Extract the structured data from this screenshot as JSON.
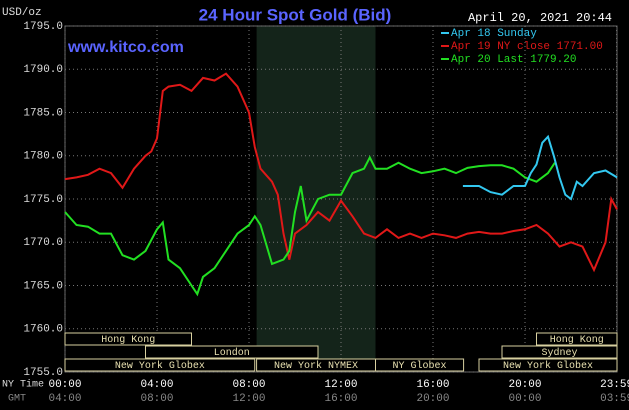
{
  "chart_data": {
    "type": "line",
    "title": "24 Hour Spot Gold (Bid)",
    "timestamp": "April 20, 2021 20:44",
    "website": "www.kitco.com",
    "y_unit": "USD/oz",
    "x_label": "NY Time",
    "x2_label": "GMT",
    "xlim": [
      0,
      24
    ],
    "ylim": [
      1755,
      1795
    ],
    "xticks": [
      {
        "value": 0,
        "label": "00:00"
      },
      {
        "value": 4,
        "label": "04:00"
      },
      {
        "value": 8,
        "label": "08:00"
      },
      {
        "value": 12,
        "label": "12:00"
      },
      {
        "value": 16,
        "label": "16:00"
      },
      {
        "value": 20,
        "label": "20:00"
      },
      {
        "value": 23.983,
        "label": "23:59"
      }
    ],
    "gmt_labels": [
      "04:00",
      "08:00",
      "12:00",
      "16:00",
      "20:00",
      "00:00",
      "03:59"
    ],
    "yticks": [
      {
        "value": 1755,
        "label": "1755.0"
      },
      {
        "value": 1760,
        "label": "1760.0"
      },
      {
        "value": 1765,
        "label": "1765.0"
      },
      {
        "value": 1770,
        "label": "1770.0"
      },
      {
        "value": 1775,
        "label": "1775.0"
      },
      {
        "value": 1780,
        "label": "1780.0"
      },
      {
        "value": 1785,
        "label": "1785.0"
      },
      {
        "value": 1790,
        "label": "1790.0"
      },
      {
        "value": 1795,
        "label": "1795.0"
      }
    ],
    "grid": true,
    "series": [
      {
        "name": "Apr 18 Sunday",
        "color": "#33c8f0",
        "x": [
          17.3,
          18,
          18.5,
          19,
          19.5,
          20,
          20.25,
          20.5,
          20.75,
          21,
          21.25,
          21.5,
          21.75,
          22,
          22.25,
          22.5,
          23,
          23.5,
          24
        ],
        "values": [
          1776.5,
          1776.5,
          1775.8,
          1775.5,
          1776.5,
          1776.5,
          1778,
          1779,
          1781.5,
          1782.2,
          1780,
          1777.5,
          1775.5,
          1775,
          1777,
          1776.5,
          1778,
          1778.3,
          1777.5
        ]
      },
      {
        "name": "Apr 19 NY close 1771.00",
        "color": "#e01818",
        "x": [
          0,
          0.5,
          1,
          1.5,
          2,
          2.5,
          3,
          3.5,
          3.75,
          4,
          4.25,
          4.5,
          5,
          5.5,
          6,
          6.5,
          7,
          7.5,
          8,
          8.25,
          8.5,
          9,
          9.25,
          9.5,
          9.75,
          10,
          10.5,
          11,
          11.5,
          12,
          12.5,
          13,
          13.5,
          14,
          14.5,
          15,
          15.5,
          16,
          16.5,
          17,
          17.5,
          18,
          18.5,
          19,
          19.5,
          20,
          20.5,
          21,
          21.5,
          22,
          22.5,
          23,
          23.5,
          23.75,
          24
        ],
        "values": [
          1777.3,
          1777.5,
          1777.8,
          1778.5,
          1778,
          1776.3,
          1778.5,
          1780,
          1780.5,
          1782,
          1787.5,
          1788,
          1788.2,
          1787.5,
          1789,
          1788.7,
          1789.5,
          1788,
          1785,
          1781,
          1778.5,
          1777,
          1775.5,
          1771,
          1768,
          1771,
          1772,
          1773.5,
          1772.5,
          1774.8,
          1773,
          1771,
          1770.5,
          1771.5,
          1770.5,
          1771,
          1770.5,
          1771,
          1770.8,
          1770.5,
          1771,
          1771.2,
          1771,
          1771,
          1771.3,
          1771.5,
          1772,
          1771,
          1769.5,
          1770,
          1769.5,
          1766.8,
          1770,
          1775,
          1773.8
        ]
      },
      {
        "name": "Apr 20 Last 1779.20",
        "color": "#22e022",
        "x": [
          0,
          0.5,
          1,
          1.5,
          2,
          2.5,
          3,
          3.5,
          4,
          4.25,
          4.5,
          5,
          5.5,
          5.75,
          6,
          6.5,
          7,
          7.5,
          8,
          8.25,
          8.5,
          9,
          9.5,
          9.75,
          10,
          10.25,
          10.5,
          11,
          11.5,
          12,
          12.5,
          13,
          13.25,
          13.5,
          14,
          14.5,
          15,
          15.5,
          16,
          16.5,
          17,
          17.5,
          18,
          18.5,
          19,
          19.5,
          20,
          20.5,
          21,
          21.3
        ],
        "values": [
          1773.5,
          1772,
          1771.8,
          1771,
          1771,
          1768.5,
          1768,
          1769,
          1771.5,
          1772.3,
          1768,
          1767,
          1765,
          1764,
          1766,
          1767,
          1769,
          1771,
          1772,
          1773,
          1772,
          1767.5,
          1768,
          1769,
          1773.5,
          1776.5,
          1772.5,
          1775,
          1775.5,
          1775.5,
          1778,
          1778.5,
          1779.8,
          1778.5,
          1778.5,
          1779.2,
          1778.5,
          1778,
          1778.2,
          1778.5,
          1778,
          1778.6,
          1778.8,
          1778.9,
          1778.9,
          1778.5,
          1777.5,
          1777,
          1778,
          1779.2
        ]
      }
    ],
    "sessions": [
      {
        "label": "Hong Kong",
        "start": 0,
        "end": 5.5
      },
      {
        "label": "Hong Kong",
        "start": 20.5,
        "end": 24
      },
      {
        "label": "London",
        "start": 3.5,
        "end": 11
      },
      {
        "label": "Sydney",
        "start": 19,
        "end": 24
      },
      {
        "label": "New York Globex",
        "start": 0,
        "end": 8.25
      },
      {
        "label": "New York NYMEX",
        "start": 8.33,
        "end": 13.5,
        "highlight": true
      },
      {
        "label": "NY Globex",
        "start": 13.5,
        "end": 17.33
      },
      {
        "label": "New York Globex",
        "start": 18,
        "end": 24
      }
    ]
  }
}
